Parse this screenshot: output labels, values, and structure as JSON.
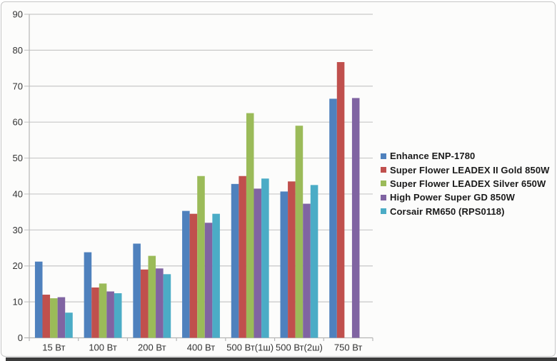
{
  "chart_data": {
    "type": "bar",
    "title": "",
    "xlabel": "",
    "ylabel": "",
    "categories": [
      "15 Вт",
      "100 Вт",
      "200 Вт",
      "400 Вт",
      "500 Вт(1ш)",
      "500 Вт(2ш)",
      "750 Вт"
    ],
    "series": [
      {
        "name": "Enhance ENP-1780",
        "color": "#4F81BD",
        "values": [
          21.2,
          23.8,
          26.2,
          35.3,
          42.8,
          40.7,
          66.5
        ]
      },
      {
        "name": "Super Flower LEADEX II Gold 850W",
        "color": "#C0504D",
        "values": [
          12.0,
          14.0,
          19.0,
          34.5,
          45.0,
          43.5,
          76.7
        ]
      },
      {
        "name": "Super Flower LEADEX Silver 650W",
        "color": "#9BBB59",
        "values": [
          11.0,
          15.1,
          22.8,
          45.0,
          62.5,
          59.0,
          null
        ]
      },
      {
        "name": "High Power Super GD 850W",
        "color": "#8064A2",
        "values": [
          11.3,
          12.9,
          19.3,
          32.0,
          41.5,
          37.3,
          66.7
        ]
      },
      {
        "name": "Corsair RM650 (RPS0118)",
        "color": "#4BACC6",
        "values": [
          7.0,
          12.4,
          17.7,
          34.5,
          44.3,
          42.5,
          null
        ]
      }
    ],
    "ylim": [
      0,
      90
    ],
    "ytick_step": 10,
    "yticks": [
      0,
      10,
      20,
      30,
      40,
      50,
      60,
      70,
      80,
      90
    ],
    "grid": true,
    "legend_position": "right"
  },
  "colors": {
    "card_background": "#fcfcfb",
    "card_border": "#c6c6c6",
    "gridline": "#c8c8c8",
    "axis_line": "#b6b6b6",
    "tick_label": "#333333",
    "legend_text": "#1a1a1a",
    "bottom_strip": "#3b3b3b"
  }
}
